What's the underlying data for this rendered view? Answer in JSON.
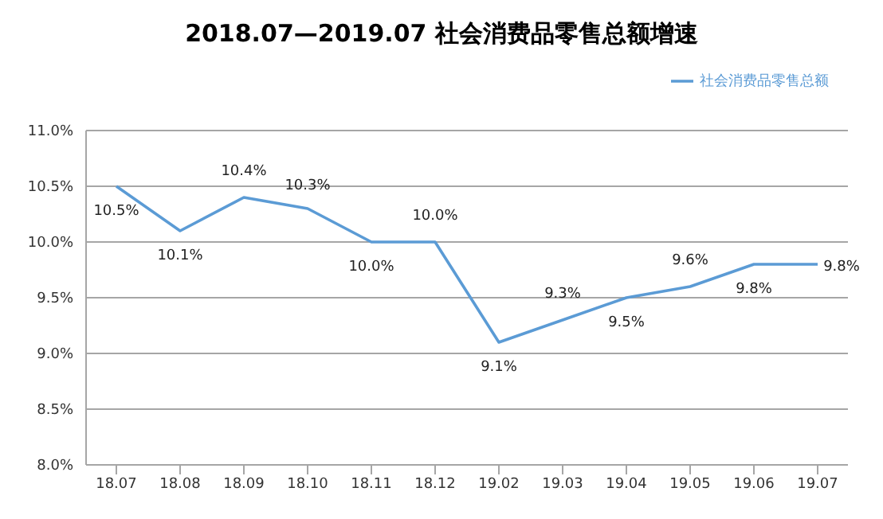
{
  "chart_data": {
    "type": "line",
    "title": "2018.07—2019.07 社会消费品零售总额增速",
    "categories": [
      "18.07",
      "18.08",
      "18.09",
      "18.10",
      "18.11",
      "18.12",
      "19.02",
      "19.03",
      "19.04",
      "19.05",
      "19.06",
      "19.07"
    ],
    "series": [
      {
        "name": "社会消费品零售总额",
        "color": "#5b9bd5",
        "values": [
          10.5,
          10.1,
          10.4,
          10.3,
          10.0,
          10.0,
          9.1,
          9.3,
          9.5,
          9.6,
          9.8,
          9.8
        ],
        "value_labels": [
          "10.5%",
          "10.1%",
          "10.4%",
          "10.3%",
          "10.0%",
          "10.0%",
          "9.1%",
          "9.3%",
          "9.5%",
          "9.6%",
          "9.8%",
          "9.8%"
        ]
      }
    ],
    "ylim": [
      8.0,
      11.0
    ],
    "yticks": [
      {
        "value": 8.0,
        "label": "8.0%"
      },
      {
        "value": 8.5,
        "label": "8.5%"
      },
      {
        "value": 9.0,
        "label": "9.0%"
      },
      {
        "value": 9.5,
        "label": "9.5%"
      },
      {
        "value": 10.0,
        "label": "10.0%"
      },
      {
        "value": 10.5,
        "label": "10.5%"
      },
      {
        "value": 11.0,
        "label": "11.0%"
      }
    ],
    "grid": "y",
    "legend": "top right",
    "marker": "none",
    "line_style": "solid"
  }
}
